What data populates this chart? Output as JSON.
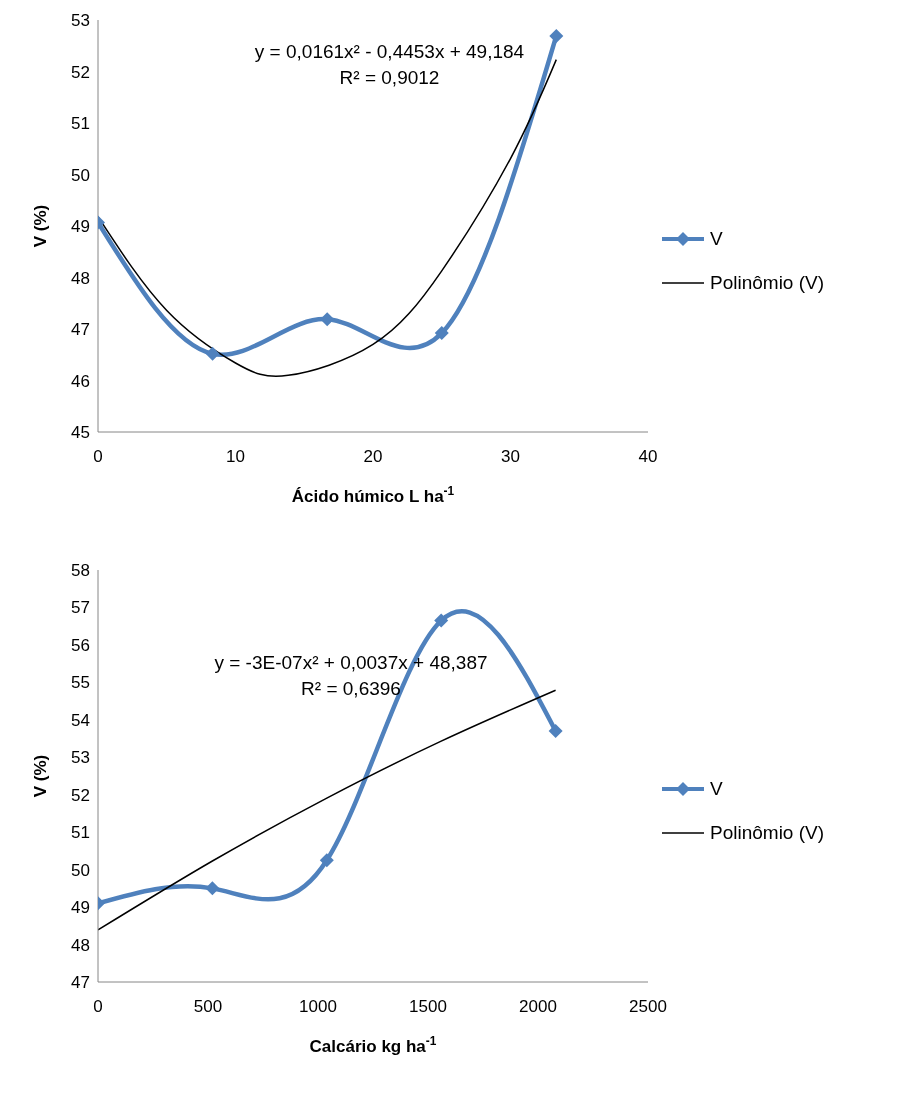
{
  "chart_data": [
    {
      "type": "line",
      "xlabel": "Ácido húmico L ha$^{-1}$",
      "ylabel": "V (%)",
      "x": [
        0,
        8.33,
        16.67,
        25,
        33.33
      ],
      "xlim": [
        0,
        40
      ],
      "xticks": [
        0,
        10,
        20,
        30,
        40
      ],
      "ylim": [
        45,
        53
      ],
      "yticks": [
        45,
        46,
        47,
        48,
        49,
        50,
        51,
        52,
        53
      ],
      "grid": false,
      "legend": "right",
      "marker": "diamond",
      "line_style": "solid",
      "annotations": [
        "y = 0,0161x² - 0,4453x + 49,184",
        "R² = 0,9012"
      ],
      "series": [
        {
          "name": "V",
          "color": "#4f81bd",
          "values": [
            49.07,
            46.52,
            47.19,
            46.92,
            52.69
          ]
        },
        {
          "name": "Polinômio (V)",
          "color": "#000000",
          "marker": "none",
          "x": [
            0,
            5,
            10,
            13.83,
            20,
            25,
            30,
            33.33
          ],
          "values": [
            49.18,
            47.36,
            46.34,
            46.1,
            46.7,
            48.13,
            50.31,
            52.23
          ]
        }
      ]
    },
    {
      "type": "line",
      "xlabel": "Calcário kg ha$^{-1}$",
      "ylabel": "V (%)",
      "x": [
        0,
        520,
        1040,
        1560,
        2080
      ],
      "xlim": [
        0,
        2500
      ],
      "xticks": [
        0,
        500,
        1000,
        1500,
        2000,
        2500
      ],
      "ylim": [
        47,
        58
      ],
      "yticks": [
        47,
        48,
        49,
        50,
        51,
        52,
        53,
        54,
        55,
        56,
        57,
        58
      ],
      "grid": false,
      "legend": "right",
      "marker": "diamond",
      "line_style": "solid",
      "annotations": [
        "y = -3E-07x² + 0,0037x + 48,387",
        "R² = 0,6396"
      ],
      "series": [
        {
          "name": "V",
          "color": "#4f81bd",
          "values": [
            49.1,
            49.5,
            50.25,
            56.65,
            53.7
          ]
        },
        {
          "name": "Polinômio (V)",
          "color": "#000000",
          "marker": "none",
          "x": [
            0,
            520,
            1040,
            1560,
            2080
          ],
          "values": [
            48.39,
            50.23,
            51.91,
            53.43,
            54.79
          ]
        }
      ]
    }
  ]
}
